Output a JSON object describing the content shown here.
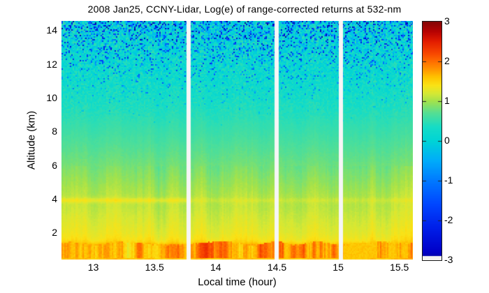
{
  "title": "2008 Jan25, CCNY-Lidar, Log(e) of range-corrected returns at 532-nm",
  "chart_data": {
    "type": "heatmap",
    "title": "2008 Jan25, CCNY-Lidar, Log(e) of range-corrected returns at 532-nm",
    "xlabel": "Local time (hour)",
    "ylabel": "Altitude (km)",
    "x_range": [
      12.74,
      15.61
    ],
    "x_ticks": [
      13,
      13.5,
      14,
      14.5,
      15,
      15.5
    ],
    "x_tick_labels": [
      "13",
      "13.5",
      "14",
      "14.5",
      "15",
      "15.5"
    ],
    "y_range": [
      0.4,
      14.55
    ],
    "y_ticks": [
      2,
      4,
      6,
      8,
      10,
      12,
      14
    ],
    "y_tick_labels": [
      "2",
      "4",
      "6",
      "8",
      "10",
      "12",
      "14"
    ],
    "grid": false,
    "data_gaps_hours": [
      13.78,
      14.5,
      15.02
    ],
    "colorbar": {
      "position": "right",
      "min": -3,
      "max": 3,
      "ticks": [
        3,
        2,
        1,
        0,
        -1,
        -2,
        -3
      ],
      "tick_labels": [
        "3",
        "2",
        "1",
        "0",
        "-1",
        "-2",
        "-3"
      ],
      "colormap": "jet-like",
      "below_min_color": "#f2f2f2",
      "stops": [
        {
          "v": -3.0,
          "c": [
            0,
            0,
            150
          ]
        },
        {
          "v": -2.8,
          "c": [
            0,
            0,
            200
          ]
        },
        {
          "v": -2.2,
          "c": [
            0,
            30,
            232
          ]
        },
        {
          "v": -1.6,
          "c": [
            0,
            70,
            255
          ]
        },
        {
          "v": -1.0,
          "c": [
            0,
            122,
            255
          ]
        },
        {
          "v": -0.5,
          "c": [
            0,
            172,
            250
          ]
        },
        {
          "v": 0.0,
          "c": [
            0,
            212,
            214
          ]
        },
        {
          "v": 0.35,
          "c": [
            22,
            220,
            198
          ]
        },
        {
          "v": 0.7,
          "c": [
            84,
            222,
            148
          ]
        },
        {
          "v": 1.0,
          "c": [
            162,
            226,
            76
          ]
        },
        {
          "v": 1.2,
          "c": [
            214,
            232,
            52
          ]
        },
        {
          "v": 1.4,
          "c": [
            250,
            226,
            22
          ]
        },
        {
          "v": 1.6,
          "c": [
            255,
            196,
            0
          ]
        },
        {
          "v": 1.8,
          "c": [
            255,
            150,
            0
          ]
        },
        {
          "v": 2.0,
          "c": [
            255,
            110,
            0
          ]
        },
        {
          "v": 2.2,
          "c": [
            248,
            72,
            0
          ]
        },
        {
          "v": 2.5,
          "c": [
            228,
            30,
            0
          ]
        },
        {
          "v": 2.75,
          "c": [
            184,
            2,
            2
          ]
        },
        {
          "v": 3.0,
          "c": [
            132,
            6,
            6
          ]
        }
      ]
    },
    "profile": {
      "altitude_km": [
        0.4,
        0.5,
        0.62,
        1.3,
        1.45,
        1.65,
        2.0,
        2.5,
        3.0,
        3.5,
        3.95,
        4.3,
        5.0,
        6.0,
        7.0,
        8.0,
        9.0,
        10.0,
        11.0,
        12.0,
        13.0,
        14.0,
        14.55
      ],
      "log_signal": [
        1.5,
        1.6,
        1.74,
        1.74,
        1.5,
        1.38,
        1.3,
        1.24,
        1.18,
        1.12,
        1.1,
        1.05,
        0.95,
        0.82,
        0.7,
        0.57,
        0.45,
        0.33,
        0.24,
        0.17,
        0.12,
        0.08,
        0.05
      ]
    },
    "aerosol_layer": {
      "altitude_km": 3.95,
      "enhancement_early": 0.22,
      "enhancement_late": 0.09,
      "weaker_after_hour": 13.8
    },
    "boundary_layer": {
      "top_km": 1.4,
      "bottom_km": 0.55,
      "log_signal_early": 1.74,
      "log_signal_late": 1.58,
      "patchier_after_hour": 14.5
    },
    "noise": {
      "start_altitude_km": 8.2,
      "sigma_at_top": 0.55,
      "speckle_probability_at_top": 0.3,
      "max_speckle_depth": 2.8
    }
  },
  "layout_note": "lidar time-height color plot with right-hand colorbar"
}
